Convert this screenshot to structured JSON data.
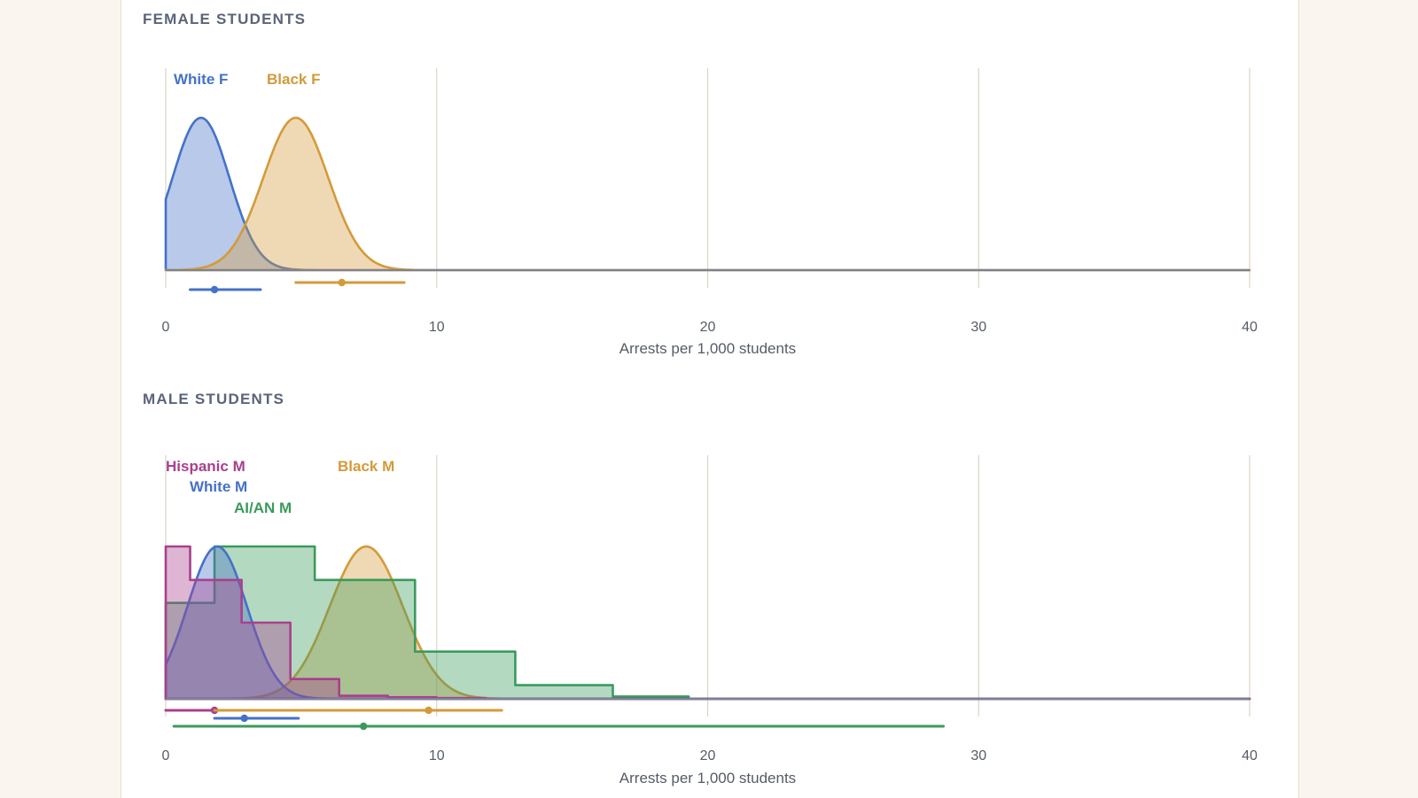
{
  "colors": {
    "white": "#4472c8",
    "black": "#d49a3a",
    "hispanic": "#a8408e",
    "aian": "#3a9a5c",
    "grid": "#dcd4c4",
    "baseline": "#7a8296"
  },
  "chart_data": [
    {
      "type": "area",
      "title": "FEMALE STUDENTS",
      "xlabel": "Arrests per 1,000 students",
      "xlim": [
        0,
        40
      ],
      "xticks": [
        "0",
        "10",
        "20",
        "30",
        "40"
      ],
      "grid": true,
      "series": [
        {
          "name": "White F",
          "color_key": "white",
          "shape": "density",
          "density_mean": 1.3,
          "density_sd": 1.05,
          "density_trunc": 0,
          "interval": {
            "low": 0.9,
            "point": 1.8,
            "high": 3.5
          }
        },
        {
          "name": "Black F",
          "color_key": "black",
          "shape": "density",
          "density_mean": 4.8,
          "density_sd": 1.2,
          "density_trunc": 0,
          "interval": {
            "low": 4.8,
            "point": 6.5,
            "high": 8.8
          }
        }
      ]
    },
    {
      "type": "area",
      "title": "MALE STUDENTS",
      "xlabel": "Arrests per 1,000 students",
      "xlim": [
        0,
        40
      ],
      "xticks": [
        "0",
        "10",
        "20",
        "30",
        "40"
      ],
      "grid": true,
      "series": [
        {
          "name": "Hispanic M",
          "color_key": "hispanic",
          "shape": "histogram",
          "bin_edges": [
            0,
            0.9,
            2.8,
            4.6,
            6.4,
            8.2,
            10.0,
            11.8
          ],
          "heights": [
            1.0,
            0.78,
            0.5,
            0.13,
            0.02,
            0.01,
            0.005
          ],
          "interval": {
            "low": 0.0,
            "point": 1.8,
            "high": 11.5
          }
        },
        {
          "name": "White M",
          "color_key": "white",
          "shape": "density",
          "density_mean": 1.9,
          "density_sd": 1.1,
          "density_trunc": 0,
          "interval": {
            "low": 1.8,
            "point": 2.9,
            "high": 4.9
          }
        },
        {
          "name": "AI/AN M",
          "color_key": "aian",
          "shape": "histogram",
          "bin_edges": [
            0,
            1.8,
            5.5,
            9.2,
            12.9,
            16.5,
            19.3
          ],
          "heights": [
            0.63,
            1.0,
            0.78,
            0.31,
            0.09,
            0.015
          ],
          "interval": {
            "low": 0.3,
            "point": 7.3,
            "high": 28.7
          }
        },
        {
          "name": "Black M",
          "color_key": "black",
          "shape": "density",
          "density_mean": 7.4,
          "density_sd": 1.35,
          "density_trunc": 0,
          "interval": {
            "low": 1.8,
            "point": 9.7,
            "high": 12.4
          }
        }
      ]
    }
  ]
}
